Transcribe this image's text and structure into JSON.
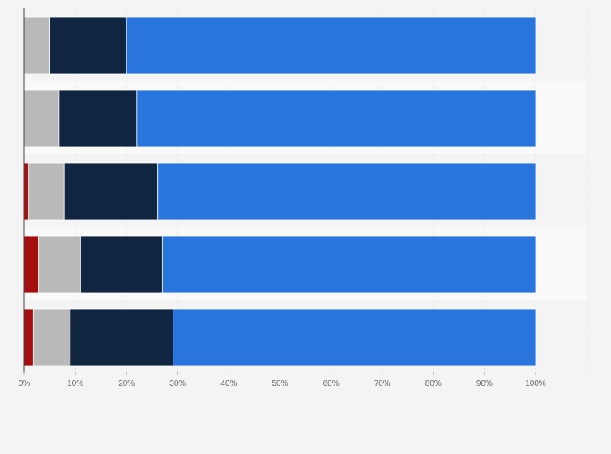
{
  "chart_data": {
    "type": "bar",
    "orientation": "horizontal",
    "stacked": true,
    "categories": [
      "",
      "",
      "",
      "",
      ""
    ],
    "xlim": [
      0,
      100
    ],
    "x_ticks": [
      "0%",
      "10%",
      "20%",
      "30%",
      "40%",
      "50%",
      "60%",
      "70%",
      "80%",
      "90%",
      "100%"
    ],
    "grid": true,
    "legend": "none",
    "series": [
      {
        "color": "#a50f0f",
        "values": [
          0,
          0,
          0.8,
          2.8,
          1.8
        ]
      },
      {
        "color": "#b9b9b9",
        "values": [
          5,
          6.8,
          7.0,
          8.2,
          7.2
        ]
      },
      {
        "color": "#10253f",
        "values": [
          15,
          15.2,
          18.3,
          16.0,
          20.1
        ]
      },
      {
        "color": "#2876dd",
        "values": [
          80,
          78,
          73.9,
          73.0,
          70.9
        ]
      }
    ]
  }
}
